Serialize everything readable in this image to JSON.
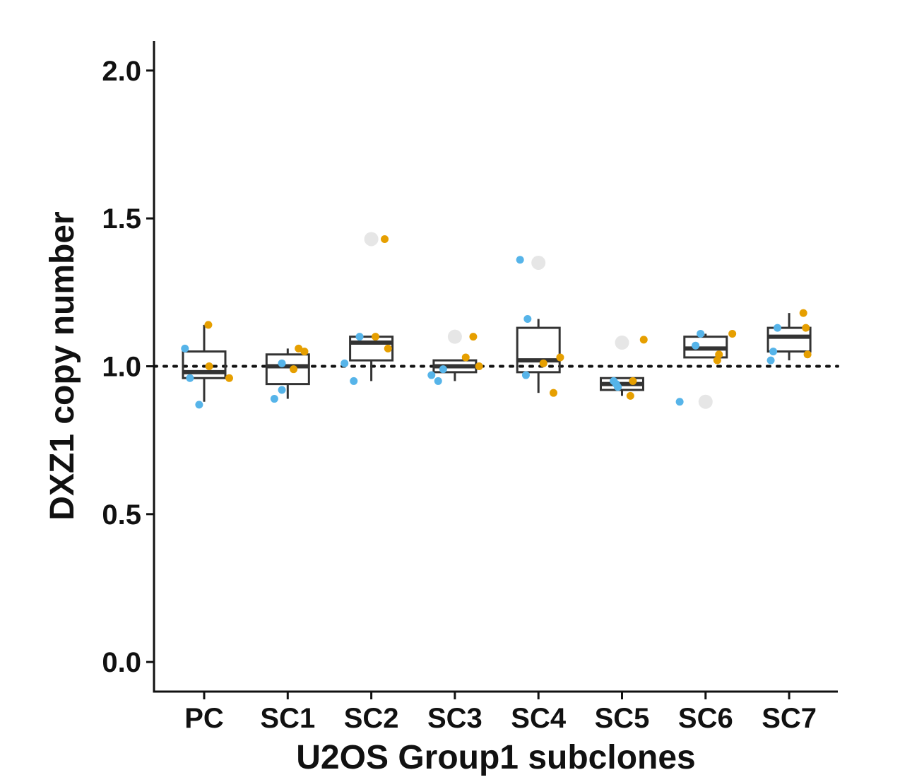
{
  "chart_data": {
    "type": "box",
    "xlabel": "U2OS Group1 subclones",
    "ylabel": "DXZ1 copy number",
    "ylim": [
      -0.1,
      2.1
    ],
    "yticks": [
      0.0,
      0.5,
      1.0,
      1.5,
      2.0
    ],
    "ytick_labels": [
      "0.0",
      "0.5",
      "1.0",
      "1.5",
      "2.0"
    ],
    "reference_line": 1.0,
    "categories": [
      "PC",
      "SC1",
      "SC2",
      "SC3",
      "SC4",
      "SC5",
      "SC6",
      "SC7"
    ],
    "colors": {
      "blue": "#56B4E9",
      "orange": "#E69F00",
      "outlier": "#e6e6e6",
      "box": "#333333"
    },
    "boxes": [
      {
        "category": "PC",
        "whisker_low": 0.88,
        "q1": 0.96,
        "median": 0.98,
        "q3": 1.05,
        "whisker_high": 1.14,
        "outliers": []
      },
      {
        "category": "SC1",
        "whisker_low": 0.89,
        "q1": 0.94,
        "median": 1.0,
        "q3": 1.04,
        "whisker_high": 1.06,
        "outliers": []
      },
      {
        "category": "SC2",
        "whisker_low": 0.95,
        "q1": 1.02,
        "median": 1.08,
        "q3": 1.1,
        "whisker_high": 1.1,
        "outliers": [
          1.43
        ]
      },
      {
        "category": "SC3",
        "whisker_low": 0.95,
        "q1": 0.98,
        "median": 1.0,
        "q3": 1.02,
        "whisker_high": 1.02,
        "outliers": [
          1.1
        ]
      },
      {
        "category": "SC4",
        "whisker_low": 0.91,
        "q1": 0.98,
        "median": 1.02,
        "q3": 1.13,
        "whisker_high": 1.16,
        "outliers": [
          1.35
        ]
      },
      {
        "category": "SC5",
        "whisker_low": 0.9,
        "q1": 0.92,
        "median": 0.94,
        "q3": 0.96,
        "whisker_high": 0.96,
        "outliers": [
          1.08
        ]
      },
      {
        "category": "SC6",
        "whisker_low": 1.03,
        "q1": 1.03,
        "median": 1.06,
        "q3": 1.1,
        "whisker_high": 1.11,
        "outliers": [
          0.88
        ]
      },
      {
        "category": "SC7",
        "whisker_low": 1.02,
        "q1": 1.05,
        "median": 1.1,
        "q3": 1.13,
        "whisker_high": 1.18,
        "outliers": []
      }
    ],
    "points": [
      {
        "category": "PC",
        "jitter": -0.23,
        "y": 1.06,
        "color": "blue"
      },
      {
        "category": "PC",
        "jitter": -0.17,
        "y": 0.96,
        "color": "blue"
      },
      {
        "category": "PC",
        "jitter": -0.06,
        "y": 0.87,
        "color": "blue"
      },
      {
        "category": "PC",
        "jitter": 0.05,
        "y": 1.14,
        "color": "orange"
      },
      {
        "category": "PC",
        "jitter": 0.06,
        "y": 1.0,
        "color": "orange"
      },
      {
        "category": "PC",
        "jitter": 0.3,
        "y": 0.96,
        "color": "orange"
      },
      {
        "category": "SC1",
        "jitter": -0.16,
        "y": 0.89,
        "color": "blue"
      },
      {
        "category": "SC1",
        "jitter": -0.07,
        "y": 0.92,
        "color": "blue"
      },
      {
        "category": "SC1",
        "jitter": -0.07,
        "y": 1.01,
        "color": "blue"
      },
      {
        "category": "SC1",
        "jitter": 0.07,
        "y": 0.99,
        "color": "orange"
      },
      {
        "category": "SC1",
        "jitter": 0.13,
        "y": 1.06,
        "color": "orange"
      },
      {
        "category": "SC1",
        "jitter": 0.2,
        "y": 1.05,
        "color": "orange"
      },
      {
        "category": "SC2",
        "jitter": -0.32,
        "y": 1.01,
        "color": "blue"
      },
      {
        "category": "SC2",
        "jitter": -0.21,
        "y": 0.95,
        "color": "blue"
      },
      {
        "category": "SC2",
        "jitter": -0.14,
        "y": 1.1,
        "color": "blue"
      },
      {
        "category": "SC2",
        "jitter": 0.05,
        "y": 1.1,
        "color": "orange"
      },
      {
        "category": "SC2",
        "jitter": 0.2,
        "y": 1.06,
        "color": "orange"
      },
      {
        "category": "SC2",
        "jitter": 0.16,
        "y": 1.43,
        "color": "orange"
      },
      {
        "category": "SC3",
        "jitter": -0.28,
        "y": 0.97,
        "color": "blue"
      },
      {
        "category": "SC3",
        "jitter": -0.2,
        "y": 0.95,
        "color": "blue"
      },
      {
        "category": "SC3",
        "jitter": -0.14,
        "y": 0.99,
        "color": "blue"
      },
      {
        "category": "SC3",
        "jitter": 0.13,
        "y": 1.03,
        "color": "orange"
      },
      {
        "category": "SC3",
        "jitter": 0.22,
        "y": 1.1,
        "color": "orange"
      },
      {
        "category": "SC3",
        "jitter": 0.29,
        "y": 1.0,
        "color": "orange"
      },
      {
        "category": "SC4",
        "jitter": -0.22,
        "y": 1.36,
        "color": "blue"
      },
      {
        "category": "SC4",
        "jitter": -0.13,
        "y": 1.16,
        "color": "blue"
      },
      {
        "category": "SC4",
        "jitter": -0.15,
        "y": 0.97,
        "color": "blue"
      },
      {
        "category": "SC4",
        "jitter": 0.06,
        "y": 1.01,
        "color": "orange"
      },
      {
        "category": "SC4",
        "jitter": 0.26,
        "y": 1.03,
        "color": "orange"
      },
      {
        "category": "SC4",
        "jitter": 0.18,
        "y": 0.91,
        "color": "orange"
      },
      {
        "category": "SC5",
        "jitter": -0.1,
        "y": 0.95,
        "color": "blue"
      },
      {
        "category": "SC5",
        "jitter": -0.07,
        "y": 0.94,
        "color": "blue"
      },
      {
        "category": "SC5",
        "jitter": -0.05,
        "y": 0.93,
        "color": "blue"
      },
      {
        "category": "SC5",
        "jitter": 0.13,
        "y": 0.95,
        "color": "orange"
      },
      {
        "category": "SC5",
        "jitter": 0.1,
        "y": 0.9,
        "color": "orange"
      },
      {
        "category": "SC5",
        "jitter": 0.26,
        "y": 1.09,
        "color": "orange"
      },
      {
        "category": "SC6",
        "jitter": -0.31,
        "y": 0.88,
        "color": "blue"
      },
      {
        "category": "SC6",
        "jitter": -0.12,
        "y": 1.07,
        "color": "blue"
      },
      {
        "category": "SC6",
        "jitter": -0.06,
        "y": 1.11,
        "color": "blue"
      },
      {
        "category": "SC6",
        "jitter": 0.16,
        "y": 1.04,
        "color": "orange"
      },
      {
        "category": "SC6",
        "jitter": 0.14,
        "y": 1.02,
        "color": "orange"
      },
      {
        "category": "SC6",
        "jitter": 0.32,
        "y": 1.11,
        "color": "orange"
      },
      {
        "category": "SC7",
        "jitter": -0.22,
        "y": 1.02,
        "color": "blue"
      },
      {
        "category": "SC7",
        "jitter": -0.19,
        "y": 1.05,
        "color": "blue"
      },
      {
        "category": "SC7",
        "jitter": -0.14,
        "y": 1.13,
        "color": "blue"
      },
      {
        "category": "SC7",
        "jitter": 0.17,
        "y": 1.18,
        "color": "orange"
      },
      {
        "category": "SC7",
        "jitter": 0.2,
        "y": 1.13,
        "color": "orange"
      },
      {
        "category": "SC7",
        "jitter": 0.22,
        "y": 1.04,
        "color": "orange"
      }
    ]
  }
}
